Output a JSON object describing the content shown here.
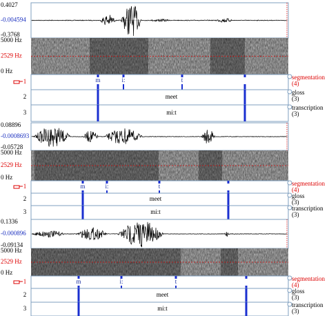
{
  "panels": [
    {
      "waveform": {
        "max": "0.4027",
        "mid": "-0.004594",
        "min": "-0.3768"
      },
      "spectrogram": {
        "max": "5000 Hz",
        "cursor": "2529 Hz",
        "min": "0 Hz"
      },
      "tiers": [
        {
          "number": "1",
          "labels": [
            "m",
            "i:",
            "t"
          ],
          "name": "segmentation",
          "count": "(4)"
        },
        {
          "number": "2",
          "labels": [
            "meet"
          ],
          "name": "gloss",
          "count": "(3)"
        },
        {
          "number": "3",
          "labels": [
            "mi:t"
          ],
          "name": "transcription",
          "count": "(3)"
        }
      ]
    },
    {
      "waveform": {
        "max": "0.08896",
        "mid": "-0.0008693",
        "min": "-0.05728"
      },
      "spectrogram": {
        "max": "5000 Hz",
        "cursor": "2529 Hz",
        "min": "0 Hz"
      },
      "tiers": [
        {
          "number": "1",
          "labels": [
            "m",
            "i:",
            "t"
          ],
          "name": "segmentation",
          "count": "(4)"
        },
        {
          "number": "2",
          "labels": [
            "meet"
          ],
          "name": "gloss",
          "count": "(3)"
        },
        {
          "number": "3",
          "labels": [
            "mi:t"
          ],
          "name": "transcription",
          "count": "(3)"
        }
      ]
    },
    {
      "waveform": {
        "max": "0.1336",
        "mid": "-0.000896",
        "min": "-0.09134"
      },
      "spectrogram": {
        "max": "5000 Hz",
        "cursor": "2529 Hz",
        "min": "0 Hz"
      },
      "tiers": [
        {
          "number": "1",
          "labels": [
            "m",
            "i:",
            "t"
          ],
          "name": "segmentation",
          "count": "(4)"
        },
        {
          "number": "2",
          "labels": [
            "meet"
          ],
          "name": "gloss",
          "count": "(3)"
        },
        {
          "number": "3",
          "labels": [
            "mi:t"
          ],
          "name": "transcription",
          "count": "(3)"
        }
      ]
    }
  ]
}
